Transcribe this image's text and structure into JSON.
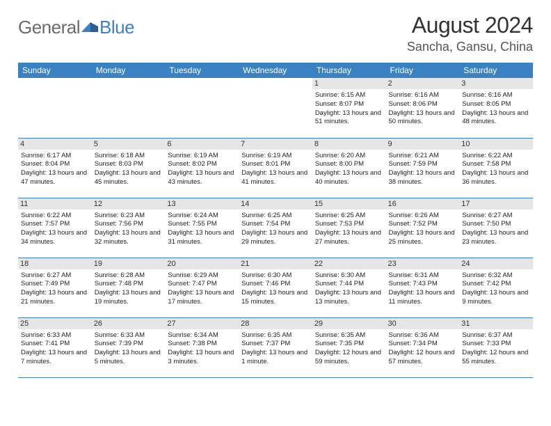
{
  "logo": {
    "text1": "General",
    "text2": "Blue"
  },
  "title": "August 2024",
  "location": "Sancha, Gansu, China",
  "colors": {
    "headerBg": "#3b82c4",
    "headerText": "#ffffff",
    "dayNumBg": "#e6e6e6",
    "borderColor": "#3b82c4",
    "logoGray": "#6b6b6b",
    "logoBlue": "#3b82c4",
    "titleColor": "#333333",
    "textColor": "#222222"
  },
  "dayHeaders": [
    "Sunday",
    "Monday",
    "Tuesday",
    "Wednesday",
    "Thursday",
    "Friday",
    "Saturday"
  ],
  "firstDayOffset": 4,
  "days": [
    {
      "n": 1,
      "sunrise": "6:15 AM",
      "sunset": "8:07 PM",
      "daylight": "13 hours and 51 minutes."
    },
    {
      "n": 2,
      "sunrise": "6:16 AM",
      "sunset": "8:06 PM",
      "daylight": "13 hours and 50 minutes."
    },
    {
      "n": 3,
      "sunrise": "6:16 AM",
      "sunset": "8:05 PM",
      "daylight": "13 hours and 48 minutes."
    },
    {
      "n": 4,
      "sunrise": "6:17 AM",
      "sunset": "8:04 PM",
      "daylight": "13 hours and 47 minutes."
    },
    {
      "n": 5,
      "sunrise": "6:18 AM",
      "sunset": "8:03 PM",
      "daylight": "13 hours and 45 minutes."
    },
    {
      "n": 6,
      "sunrise": "6:19 AM",
      "sunset": "8:02 PM",
      "daylight": "13 hours and 43 minutes."
    },
    {
      "n": 7,
      "sunrise": "6:19 AM",
      "sunset": "8:01 PM",
      "daylight": "13 hours and 41 minutes."
    },
    {
      "n": 8,
      "sunrise": "6:20 AM",
      "sunset": "8:00 PM",
      "daylight": "13 hours and 40 minutes."
    },
    {
      "n": 9,
      "sunrise": "6:21 AM",
      "sunset": "7:59 PM",
      "daylight": "13 hours and 38 minutes."
    },
    {
      "n": 10,
      "sunrise": "6:22 AM",
      "sunset": "7:58 PM",
      "daylight": "13 hours and 36 minutes."
    },
    {
      "n": 11,
      "sunrise": "6:22 AM",
      "sunset": "7:57 PM",
      "daylight": "13 hours and 34 minutes."
    },
    {
      "n": 12,
      "sunrise": "6:23 AM",
      "sunset": "7:56 PM",
      "daylight": "13 hours and 32 minutes."
    },
    {
      "n": 13,
      "sunrise": "6:24 AM",
      "sunset": "7:55 PM",
      "daylight": "13 hours and 31 minutes."
    },
    {
      "n": 14,
      "sunrise": "6:25 AM",
      "sunset": "7:54 PM",
      "daylight": "13 hours and 29 minutes."
    },
    {
      "n": 15,
      "sunrise": "6:25 AM",
      "sunset": "7:53 PM",
      "daylight": "13 hours and 27 minutes."
    },
    {
      "n": 16,
      "sunrise": "6:26 AM",
      "sunset": "7:52 PM",
      "daylight": "13 hours and 25 minutes."
    },
    {
      "n": 17,
      "sunrise": "6:27 AM",
      "sunset": "7:50 PM",
      "daylight": "13 hours and 23 minutes."
    },
    {
      "n": 18,
      "sunrise": "6:27 AM",
      "sunset": "7:49 PM",
      "daylight": "13 hours and 21 minutes."
    },
    {
      "n": 19,
      "sunrise": "6:28 AM",
      "sunset": "7:48 PM",
      "daylight": "13 hours and 19 minutes."
    },
    {
      "n": 20,
      "sunrise": "6:29 AM",
      "sunset": "7:47 PM",
      "daylight": "13 hours and 17 minutes."
    },
    {
      "n": 21,
      "sunrise": "6:30 AM",
      "sunset": "7:46 PM",
      "daylight": "13 hours and 15 minutes."
    },
    {
      "n": 22,
      "sunrise": "6:30 AM",
      "sunset": "7:44 PM",
      "daylight": "13 hours and 13 minutes."
    },
    {
      "n": 23,
      "sunrise": "6:31 AM",
      "sunset": "7:43 PM",
      "daylight": "13 hours and 11 minutes."
    },
    {
      "n": 24,
      "sunrise": "6:32 AM",
      "sunset": "7:42 PM",
      "daylight": "13 hours and 9 minutes."
    },
    {
      "n": 25,
      "sunrise": "6:33 AM",
      "sunset": "7:41 PM",
      "daylight": "13 hours and 7 minutes."
    },
    {
      "n": 26,
      "sunrise": "6:33 AM",
      "sunset": "7:39 PM",
      "daylight": "13 hours and 5 minutes."
    },
    {
      "n": 27,
      "sunrise": "6:34 AM",
      "sunset": "7:38 PM",
      "daylight": "13 hours and 3 minutes."
    },
    {
      "n": 28,
      "sunrise": "6:35 AM",
      "sunset": "7:37 PM",
      "daylight": "13 hours and 1 minute."
    },
    {
      "n": 29,
      "sunrise": "6:35 AM",
      "sunset": "7:35 PM",
      "daylight": "12 hours and 59 minutes."
    },
    {
      "n": 30,
      "sunrise": "6:36 AM",
      "sunset": "7:34 PM",
      "daylight": "12 hours and 57 minutes."
    },
    {
      "n": 31,
      "sunrise": "6:37 AM",
      "sunset": "7:33 PM",
      "daylight": "12 hours and 55 minutes."
    }
  ],
  "labels": {
    "sunrise": "Sunrise:",
    "sunset": "Sunset:",
    "daylight": "Daylight:"
  }
}
